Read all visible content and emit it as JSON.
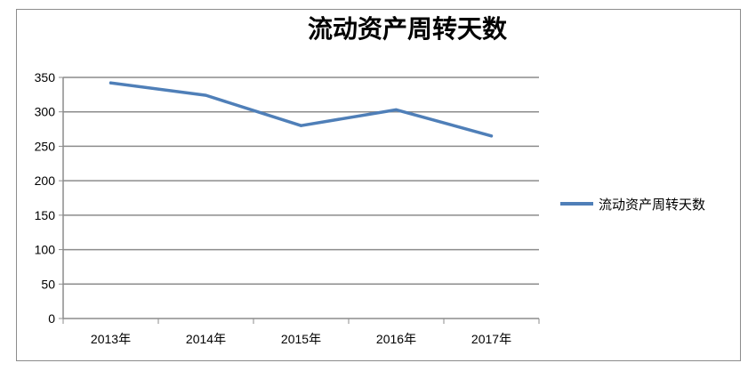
{
  "chart_data": {
    "type": "line",
    "title": "流动资产周转天数",
    "xlabel": "",
    "ylabel": "",
    "categories": [
      "2013年",
      "2014年",
      "2015年",
      "2016年",
      "2017年"
    ],
    "series": [
      {
        "name": "流动资产周转天数",
        "values": [
          342,
          324,
          280,
          303,
          265
        ],
        "color": "#4f7fb8"
      }
    ],
    "ylim": [
      0,
      350
    ],
    "yticks": [
      "0",
      "50",
      "100",
      "150",
      "200",
      "250",
      "300",
      "350"
    ],
    "grid": true,
    "legend": "right"
  }
}
